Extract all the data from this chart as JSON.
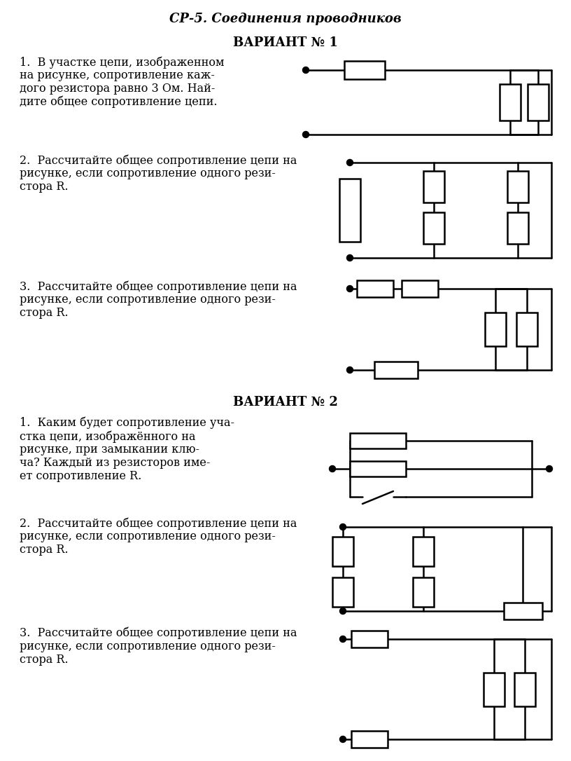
{
  "title": "СР-5. Соединения проводников",
  "variant1": "ВАРИАНТ № 1",
  "variant2": "ВАРИАНТ № 2",
  "bg_color": "#ffffff",
  "text_color": "#000000",
  "problems": {
    "v1p1_lines": [
      "1.  В участке цепи, изображенном",
      "на рисунке, сопротивление каж-",
      "дого резистора равно 3 Ом. Най-",
      "дите общее сопротивление цепи."
    ],
    "v1p2_lines": [
      "2.  Рассчитайте общее сопротивление цепи на",
      "рисунке, если сопротивление одного рези-",
      "стора R."
    ],
    "v1p3_lines": [
      "3.  Рассчитайте общее сопротивление цепи на",
      "рисунке, если сопротивление одного рези-",
      "стора R."
    ],
    "v2p1_lines": [
      "1.  Каким будет сопротивление уча-",
      "стка цепи, изображённого на",
      "рисунке, при замыкании клю-",
      "ча? Каждый из резисторов име-",
      "ет сопротивление R."
    ],
    "v2p2_lines": [
      "2.  Рассчитайте общее сопротивление цепи на",
      "рисунке, если сопротивление одного рези-",
      "стора R."
    ],
    "v2p3_lines": [
      "3.  Рассчитайте общее сопротивление цепи на",
      "рисунке, если сопротивление одного рези-",
      "стора R."
    ]
  }
}
